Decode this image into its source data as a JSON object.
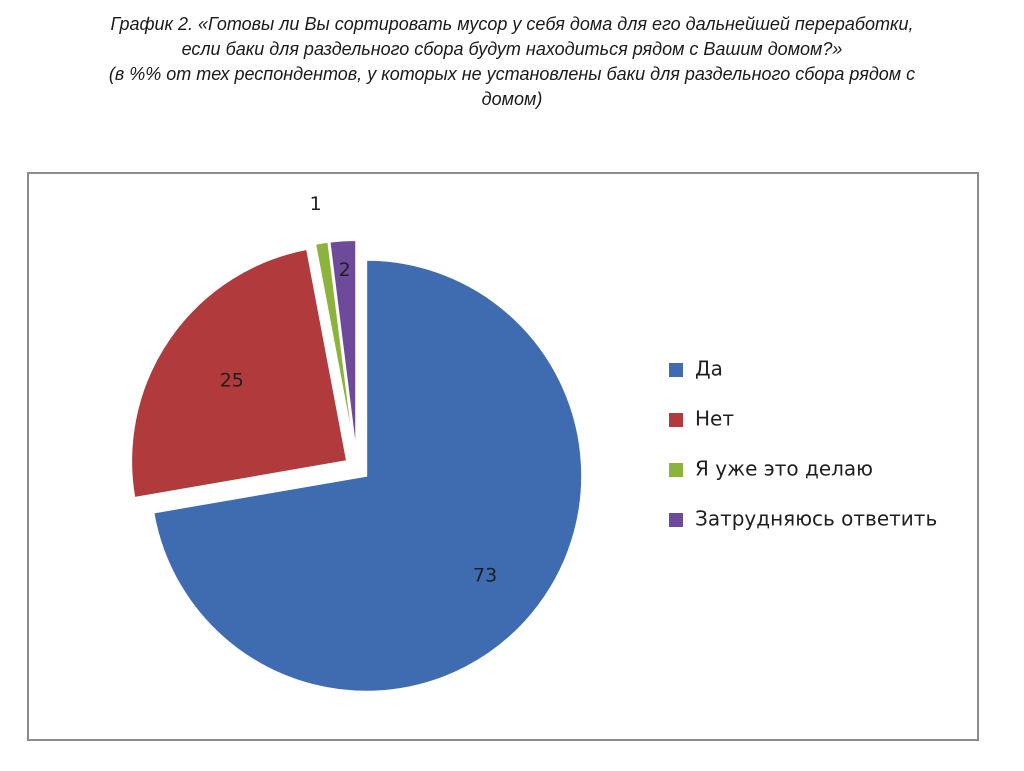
{
  "title": {
    "line1": "График 2. «Готовы ли Вы сортировать мусор у себя дома для его дальнейшей переработки,",
    "line2": "если баки для раздельного сбора будут находиться рядом с Вашим домом?»",
    "line3": "(в %% от тех респондентов, у которых не установлены баки для раздельного сбора рядом с",
    "line4": "домом)"
  },
  "chart_data": {
    "type": "pie",
    "title": "",
    "slices": [
      {
        "label": "Да",
        "value": 73,
        "color": "#3f6cb0"
      },
      {
        "label": "Нет",
        "value": 25,
        "color": "#b03a3c"
      },
      {
        "label": "Я уже это делаю",
        "value": 1,
        "color": "#8cb33c"
      },
      {
        "label": "Затрудняюсь ответить",
        "value": 2,
        "color": "#6e4a9a"
      }
    ],
    "exploded": true,
    "legend_position": "right"
  }
}
